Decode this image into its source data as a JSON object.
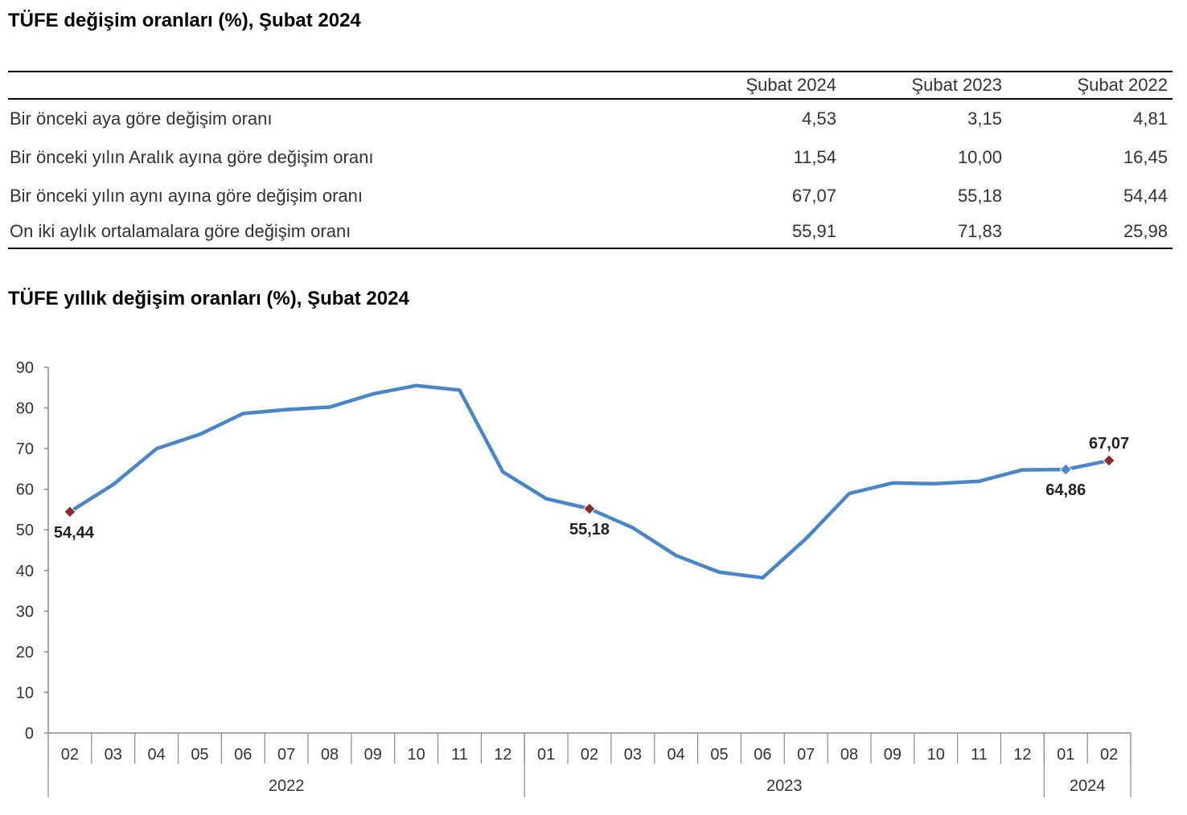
{
  "table": {
    "title": "TÜFE değişim oranları (%), Şubat 2024",
    "header_blank": "",
    "columns": [
      "Şubat 2024",
      "Şubat 2023",
      "Şubat 2022"
    ],
    "rows": [
      {
        "label": "Bir önceki aya göre değişim oranı",
        "values": [
          "4,53",
          "3,15",
          "4,81"
        ]
      },
      {
        "label": "Bir önceki yılın Aralık ayına göre değişim oranı",
        "values": [
          "11,54",
          "10,00",
          "16,45"
        ]
      },
      {
        "label": "Bir önceki yılın aynı ayına göre değişim oranı",
        "values": [
          "67,07",
          "55,18",
          "54,44"
        ]
      },
      {
        "label": "On iki aylık ortalamalara göre değişim oranı",
        "values": [
          "55,91",
          "71,83",
          "25,98"
        ]
      }
    ]
  },
  "chart_data": {
    "type": "line",
    "title": "TÜFE yıllık değişim oranları (%), Şubat 2024",
    "xlabel": "",
    "ylabel": "",
    "ylim": [
      0,
      90
    ],
    "yticks": [
      "0",
      "10",
      "20",
      "30",
      "40",
      "50",
      "60",
      "70",
      "80",
      "90"
    ],
    "categories": [
      "02",
      "03",
      "04",
      "05",
      "06",
      "07",
      "08",
      "09",
      "10",
      "11",
      "12",
      "01",
      "02",
      "03",
      "04",
      "05",
      "06",
      "07",
      "08",
      "09",
      "10",
      "11",
      "12",
      "01",
      "02"
    ],
    "groups": [
      {
        "label": "2022",
        "start": 0,
        "end": 10
      },
      {
        "label": "2023",
        "start": 11,
        "end": 22
      },
      {
        "label": "2024",
        "start": 23,
        "end": 24
      }
    ],
    "series": [
      {
        "name": "TÜFE yıllık değişim",
        "color": "#4a86c5",
        "values": [
          54.44,
          61.14,
          69.97,
          73.5,
          78.62,
          79.6,
          80.21,
          83.45,
          85.51,
          84.39,
          64.27,
          57.68,
          55.18,
          50.51,
          43.68,
          39.59,
          38.21,
          47.83,
          58.94,
          61.53,
          61.36,
          61.98,
          64.77,
          64.86,
          67.07
        ]
      }
    ],
    "annotations": [
      {
        "index": 0,
        "label": "54,44",
        "marker_color": "#8b2a2a",
        "position": "below"
      },
      {
        "index": 12,
        "label": "55,18",
        "marker_color": "#8b2a2a",
        "position": "below"
      },
      {
        "index": 23,
        "label": "64,86",
        "marker_color": "#4a86c5",
        "position": "below"
      },
      {
        "index": 24,
        "label": "67,07",
        "marker_color": "#8b2a2a",
        "position": "above"
      }
    ],
    "grid": false,
    "legend": "none"
  }
}
